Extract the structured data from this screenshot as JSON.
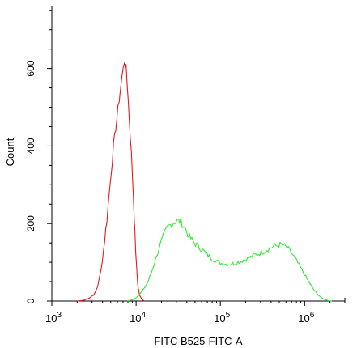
{
  "chart_data": {
    "type": "line",
    "title": "",
    "xlabel": "FITC B525-FITC-A",
    "ylabel": "Count",
    "xscale": "log",
    "xlim": [
      1000,
      3000000
    ],
    "ylim": [
      0,
      760
    ],
    "x_ticks": [
      {
        "value": 1000,
        "base": "10",
        "exp": "3"
      },
      {
        "value": 10000,
        "base": "10",
        "exp": "4"
      },
      {
        "value": 100000,
        "base": "10",
        "exp": "5"
      },
      {
        "value": 1000000,
        "base": "10",
        "exp": "6"
      }
    ],
    "y_ticks": [
      {
        "value": 0,
        "label": "0"
      },
      {
        "value": 200,
        "label": "200"
      },
      {
        "value": 400,
        "label": "400"
      },
      {
        "value": 600,
        "label": "600"
      }
    ],
    "series": [
      {
        "color": "#e41a1c",
        "points": [
          [
            1995,
            0
          ],
          [
            2400,
            2
          ],
          [
            2800,
            8
          ],
          [
            3200,
            18
          ],
          [
            3500,
            38
          ],
          [
            3800,
            75
          ],
          [
            4100,
            130
          ],
          [
            4500,
            210
          ],
          [
            4900,
            300
          ],
          [
            5400,
            400
          ],
          [
            5900,
            470
          ],
          [
            6300,
            520
          ],
          [
            6800,
            580
          ],
          [
            7300,
            620
          ],
          [
            7600,
            600
          ],
          [
            7900,
            550
          ],
          [
            8300,
            470
          ],
          [
            8800,
            380
          ],
          [
            9300,
            270
          ],
          [
            9700,
            170
          ],
          [
            10100,
            90
          ],
          [
            10500,
            40
          ],
          [
            11000,
            15
          ],
          [
            11700,
            4
          ],
          [
            12600,
            0
          ]
        ]
      },
      {
        "color": "#2ee82e",
        "points": [
          [
            7900,
            0
          ],
          [
            9500,
            5
          ],
          [
            10800,
            15
          ],
          [
            12000,
            28
          ],
          [
            13500,
            45
          ],
          [
            15000,
            70
          ],
          [
            16600,
            100
          ],
          [
            18600,
            135
          ],
          [
            21000,
            165
          ],
          [
            23700,
            190
          ],
          [
            26500,
            200
          ],
          [
            30000,
            208
          ],
          [
            34000,
            205
          ],
          [
            38000,
            190
          ],
          [
            43000,
            165
          ],
          [
            49000,
            150
          ],
          [
            56000,
            140
          ],
          [
            64000,
            128
          ],
          [
            74000,
            115
          ],
          [
            86000,
            105
          ],
          [
            100000,
            98
          ],
          [
            120000,
            95
          ],
          [
            145000,
            97
          ],
          [
            175000,
            103
          ],
          [
            210000,
            110
          ],
          [
            255000,
            118
          ],
          [
            305000,
            125
          ],
          [
            370000,
            135
          ],
          [
            440000,
            142
          ],
          [
            530000,
            145
          ],
          [
            620000,
            138
          ],
          [
            720000,
            120
          ],
          [
            830000,
            98
          ],
          [
            960000,
            75
          ],
          [
            1100000,
            52
          ],
          [
            1260000,
            32
          ],
          [
            1440000,
            16
          ],
          [
            1650000,
            6
          ],
          [
            1900000,
            1
          ],
          [
            2100000,
            0
          ]
        ]
      }
    ],
    "grid": false,
    "legend": "none"
  }
}
